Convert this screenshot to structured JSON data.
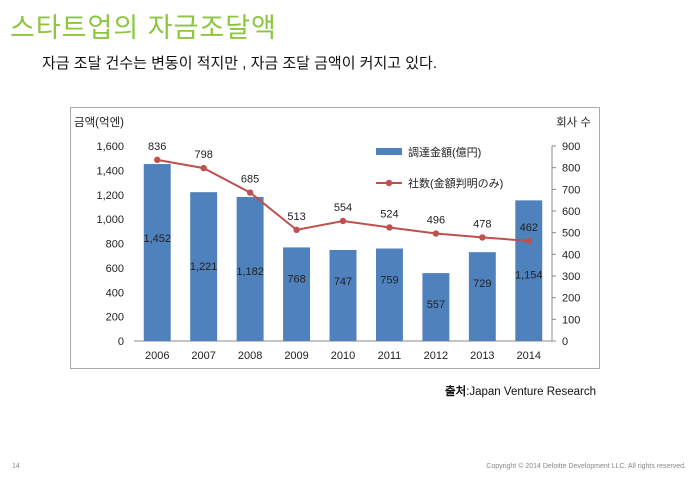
{
  "slide": {
    "title": "스타트업의 자금조달액",
    "subtitle": "자금 조달 건수는 변동이 적지만 , 자금 조달 금액이 커지고 있다.",
    "source_label": "출처",
    "source_separator": ":",
    "source_text": "Japan Venture Research",
    "page_number": "14",
    "copyright": "Copyright © 2014 Deloitte Development LLC. All rights reserved."
  },
  "chart_data": {
    "type": "bar",
    "categories": [
      "2006",
      "2007",
      "2008",
      "2009",
      "2010",
      "2011",
      "2012",
      "2013",
      "2014"
    ],
    "series": [
      {
        "name": "調達金額(億円)",
        "kind": "bar",
        "axis": "left",
        "color": "#4f81bd",
        "values": [
          1452,
          1221,
          1182,
          768,
          747,
          759,
          557,
          729,
          1154
        ],
        "labels": [
          "1,452",
          "1,221",
          "1,182",
          "768",
          "747",
          "759",
          "557",
          "729",
          "1,154"
        ]
      },
      {
        "name": "社数(金額判明のみ)",
        "kind": "line",
        "axis": "right",
        "color": "#c0504d",
        "values": [
          836,
          798,
          685,
          513,
          554,
          524,
          496,
          478,
          462
        ],
        "labels": [
          "836",
          "798",
          "685",
          "513",
          "554",
          "524",
          "496",
          "478",
          "462"
        ]
      }
    ],
    "ylabel": "금액(억엔)",
    "y2label": "회사 수",
    "ylim": [
      0,
      1600
    ],
    "y2lim": [
      0,
      900
    ],
    "yticks": [
      "0",
      "200",
      "400",
      "600",
      "800",
      "1,000",
      "1,200",
      "1,400",
      "1,600"
    ],
    "y2ticks": [
      "0",
      "100",
      "200",
      "300",
      "400",
      "500",
      "600",
      "700",
      "800",
      "900"
    ],
    "grid": false,
    "legend": "top-right"
  }
}
